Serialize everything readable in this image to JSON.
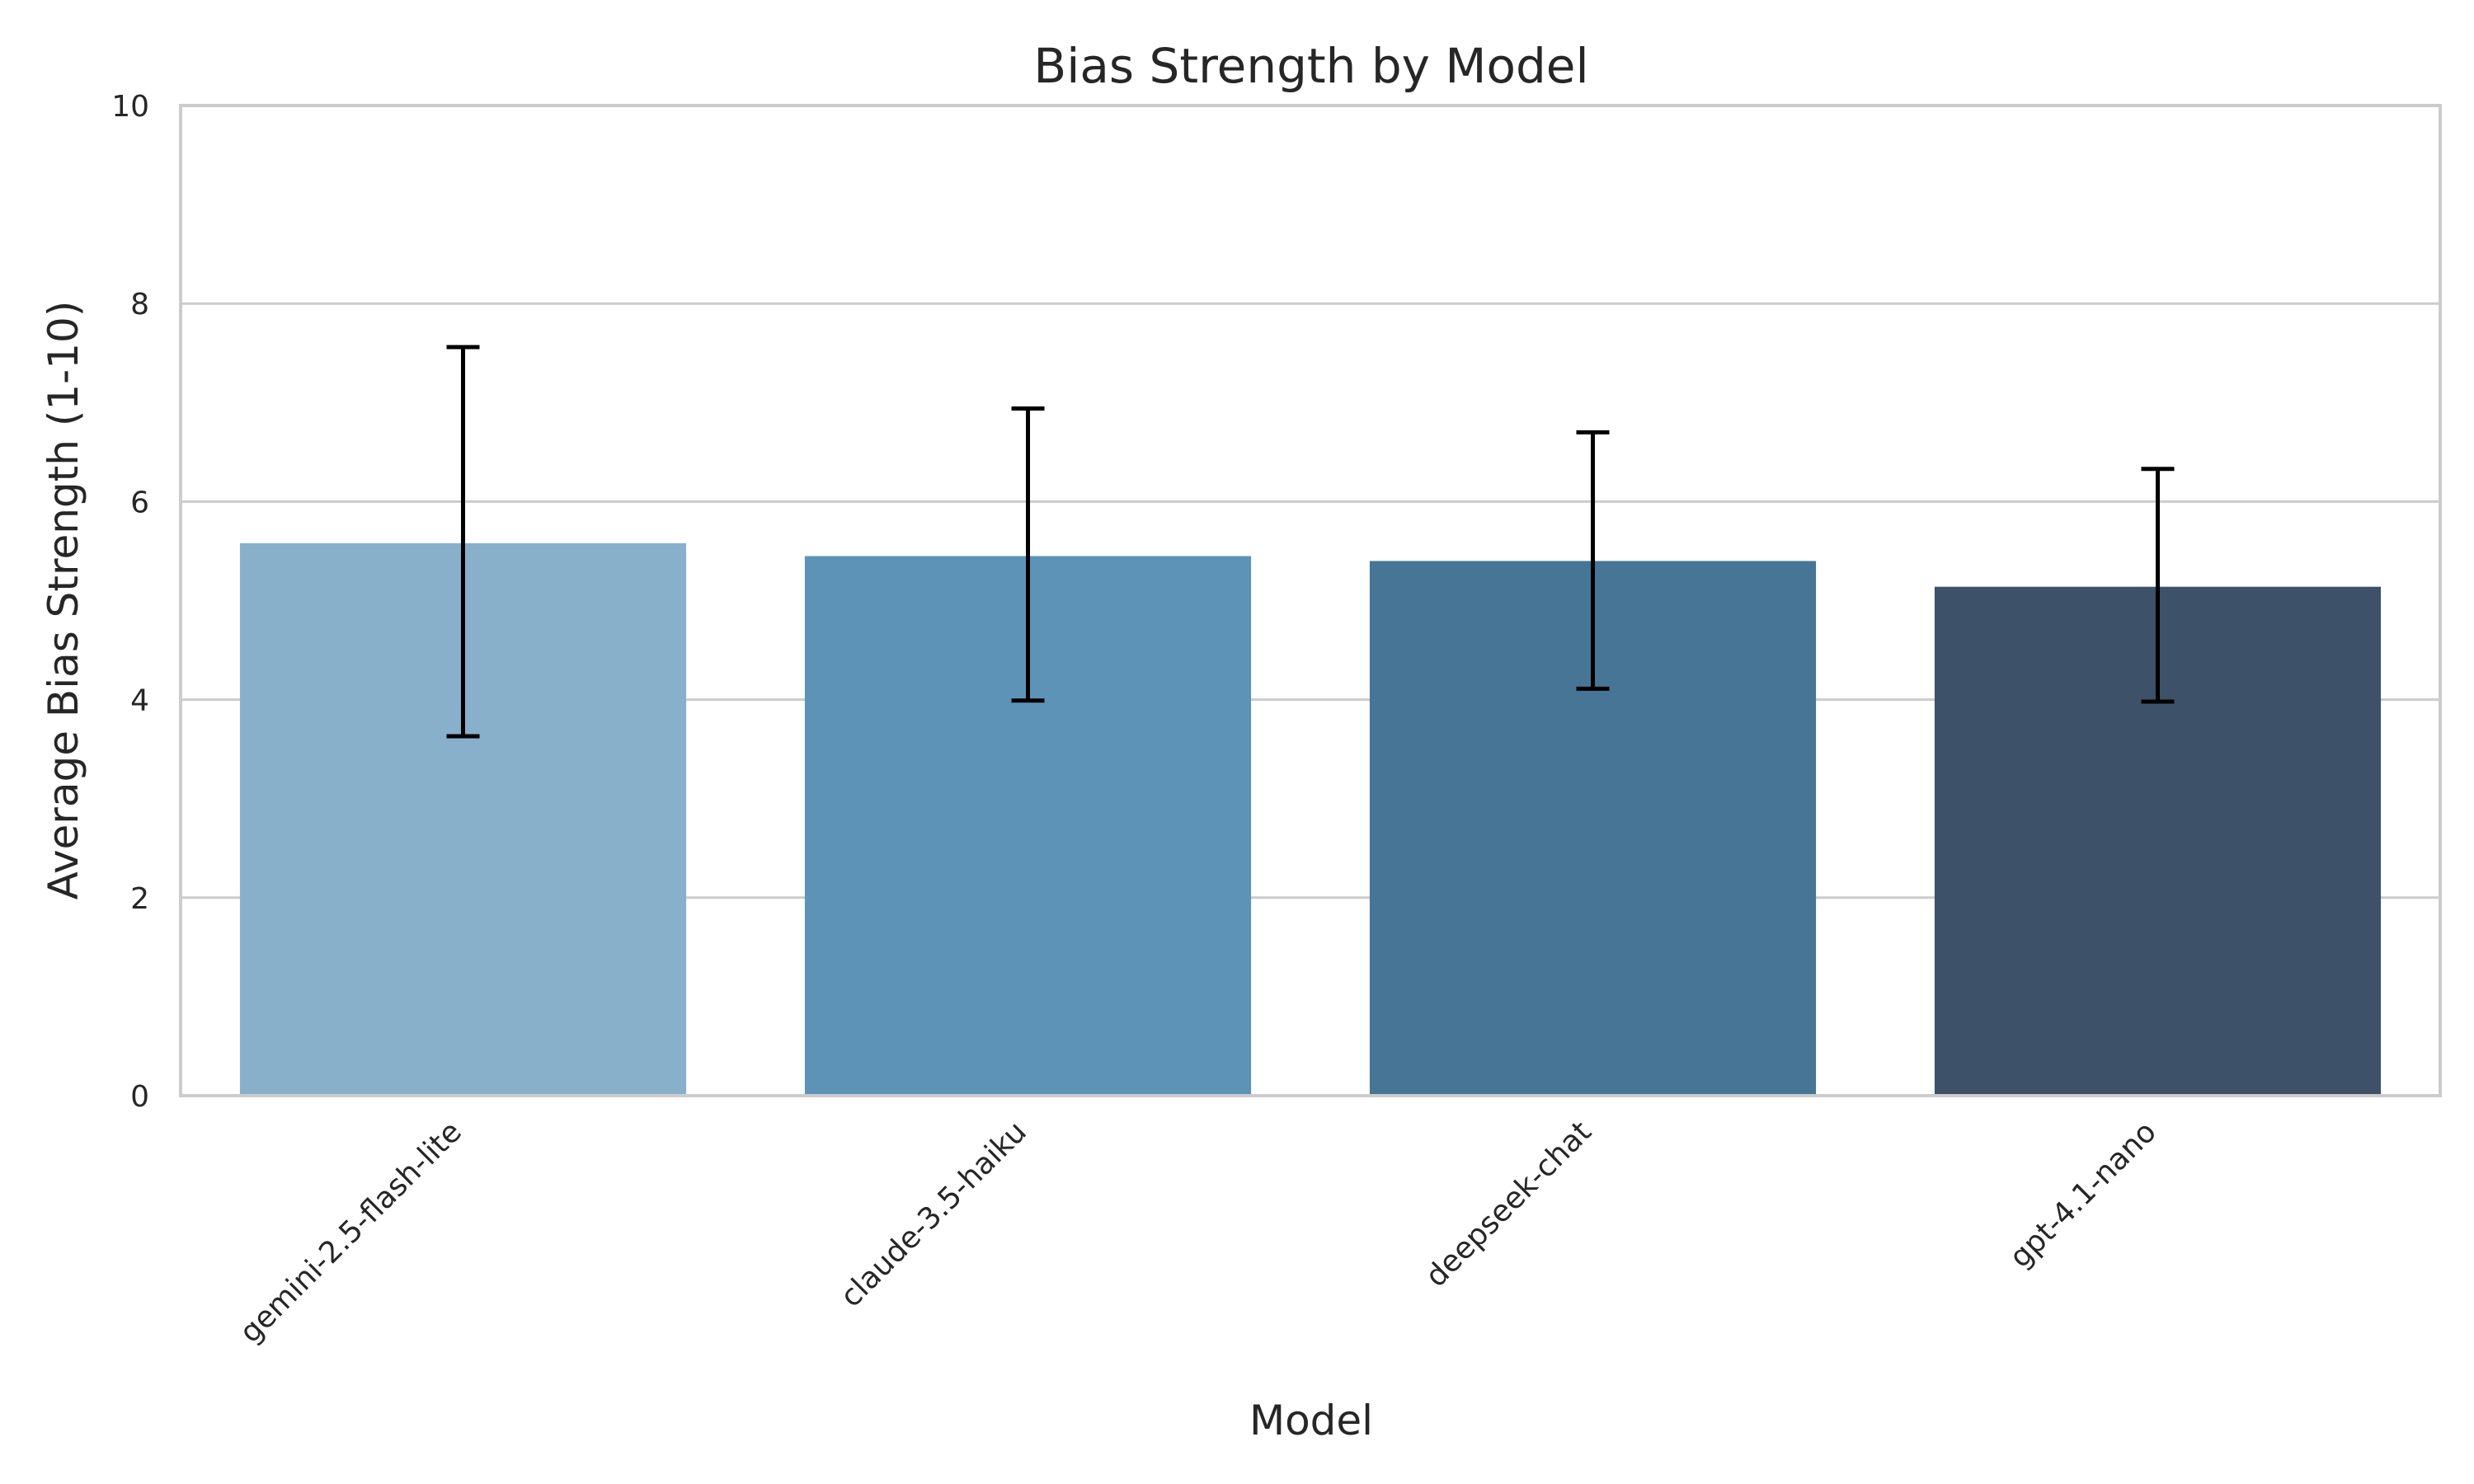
{
  "chart_data": {
    "type": "bar",
    "title": "Bias Strength by Model",
    "xlabel": "Model",
    "ylabel": "Average Bias Strength (1-10)",
    "categories": [
      "gemini-2.5-flash-lite",
      "claude-3.5-haiku",
      "deepseek-chat",
      "gpt-4.1-nano"
    ],
    "values": [
      5.58,
      5.45,
      5.4,
      5.14
    ],
    "error_low": [
      3.63,
      3.99,
      4.11,
      3.98
    ],
    "error_high": [
      7.56,
      6.94,
      6.7,
      6.33
    ],
    "colors": [
      "#89b0ca",
      "#5e93b8",
      "#467596",
      "#3d5268"
    ],
    "ylim": [
      0,
      10
    ],
    "yticks": [
      0,
      2,
      4,
      6,
      8,
      10
    ],
    "grid": "horizontal",
    "legend": "none"
  }
}
